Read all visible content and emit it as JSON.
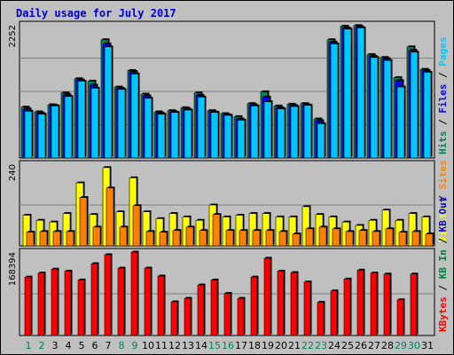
{
  "title": "Daily usage for July 2017",
  "colors": {
    "hits": "#00805c",
    "files": "#0000ff",
    "pages": "#00c8ff",
    "visits": "#ffff00",
    "sites": "#ff8000",
    "kb_in": "#008040",
    "kb_out": "#0000ff",
    "kb_f": "#ff0000",
    "weekend_day": "#00805c",
    "weekday_day": "#000000"
  },
  "chart_data": [
    {
      "type": "bar",
      "panel": "top",
      "ytick": "2252",
      "ymax": 2252,
      "legend": [
        {
          "text": "Hits",
          "color": "#00805c"
        },
        {
          "text": " / ",
          "color": "#000000"
        },
        {
          "text": "Files",
          "color": "#0000ff"
        },
        {
          "text": " / ",
          "color": "#000000"
        },
        {
          "text": "Pages",
          "color": "#00c8ff"
        }
      ],
      "categories": [
        "1",
        "2",
        "3",
        "4",
        "5",
        "6",
        "7",
        "8",
        "9",
        "10",
        "11",
        "12",
        "13",
        "14",
        "15",
        "16",
        "17",
        "18",
        "19",
        "20",
        "21",
        "22",
        "23",
        "24",
        "25",
        "26",
        "27",
        "28",
        "29",
        "30",
        "31"
      ],
      "series": [
        {
          "name": "Hits",
          "values": [
            860,
            780,
            900,
            1100,
            1340,
            1300,
            2000,
            1200,
            1480,
            1080,
            780,
            800,
            850,
            1100,
            800,
            750,
            700,
            920,
            1120,
            880,
            910,
            920,
            660,
            2000,
            2230,
            2240,
            1750,
            1700,
            1360,
            1880,
            1500
          ]
        },
        {
          "name": "Files",
          "values": [
            830,
            760,
            890,
            1070,
            1320,
            1230,
            1930,
            1180,
            1460,
            1050,
            760,
            780,
            830,
            1060,
            780,
            730,
            660,
            900,
            1030,
            850,
            890,
            900,
            630,
            1960,
            2200,
            2220,
            1720,
            1680,
            1310,
            1820,
            1480
          ]
        },
        {
          "name": "Pages",
          "values": [
            790,
            740,
            880,
            1040,
            1300,
            1180,
            1880,
            1160,
            1420,
            1010,
            740,
            770,
            810,
            1030,
            770,
            720,
            640,
            880,
            950,
            830,
            870,
            890,
            580,
            1930,
            2180,
            2200,
            1700,
            1650,
            1200,
            1790,
            1450
          ]
        }
      ]
    },
    {
      "type": "bar",
      "panel": "middle",
      "ytick": "240",
      "ymax": 240,
      "legend": [
        {
          "text": "Visits",
          "color": "#ffff00"
        },
        {
          "text": " / ",
          "color": "#000000"
        },
        {
          "text": "Sites",
          "color": "#ff8000"
        }
      ],
      "categories": [
        "1",
        "2",
        "3",
        "4",
        "5",
        "6",
        "7",
        "8",
        "9",
        "10",
        "11",
        "12",
        "13",
        "14",
        "15",
        "16",
        "17",
        "18",
        "19",
        "20",
        "21",
        "22",
        "23",
        "24",
        "25",
        "26",
        "27",
        "28",
        "29",
        "30",
        "31"
      ],
      "series": [
        {
          "name": "Visits",
          "values": [
            90,
            75,
            70,
            95,
            185,
            92,
            230,
            100,
            200,
            100,
            80,
            95,
            85,
            75,
            120,
            85,
            90,
            95,
            95,
            85,
            85,
            115,
            92,
            85,
            70,
            60,
            75,
            105,
            75,
            95,
            85
          ]
        },
        {
          "name": "Sites",
          "values": [
            40,
            42,
            42,
            42,
            142,
            55,
            170,
            55,
            118,
            42,
            40,
            45,
            55,
            45,
            92,
            45,
            45,
            45,
            45,
            42,
            35,
            50,
            55,
            50,
            42,
            45,
            42,
            50,
            40,
            42,
            35
          ]
        }
      ]
    },
    {
      "type": "bar",
      "panel": "bottom",
      "ytick": "168394",
      "ymax": 168394,
      "legend": [
        {
          "text": "KBytes",
          "color": "#ff0000"
        },
        {
          "text": " / ",
          "color": "#000000"
        },
        {
          "text": "KB In",
          "color": "#008040"
        },
        {
          "text": " / ",
          "color": "#000000"
        },
        {
          "text": "KB Out",
          "color": "#0000ff"
        }
      ],
      "categories": [
        "1",
        "2",
        "3",
        "4",
        "5",
        "6",
        "7",
        "8",
        "9",
        "10",
        "11",
        "12",
        "13",
        "14",
        "15",
        "16",
        "17",
        "18",
        "19",
        "20",
        "21",
        "22",
        "23",
        "24",
        "25",
        "26",
        "27",
        "28",
        "29",
        "30",
        "31"
      ],
      "series": [
        {
          "name": "KBytes",
          "values": [
            118000,
            126000,
            134000,
            130000,
            112000,
            145000,
            163000,
            136000,
            168394,
            136000,
            120000,
            68000,
            75000,
            102000,
            112000,
            85000,
            75000,
            118000,
            156000,
            130000,
            127000,
            108000,
            67000,
            90000,
            114000,
            132000,
            126000,
            124000,
            72000,
            124000,
            0
          ]
        }
      ]
    }
  ],
  "days": [
    "1",
    "2",
    "3",
    "4",
    "5",
    "6",
    "7",
    "8",
    "9",
    "10",
    "11",
    "12",
    "13",
    "14",
    "15",
    "16",
    "17",
    "18",
    "19",
    "20",
    "21",
    "22",
    "23",
    "24",
    "25",
    "26",
    "27",
    "28",
    "29",
    "30",
    "31"
  ],
  "weekend_days": [
    1,
    2,
    8,
    9,
    15,
    16,
    22,
    23,
    29,
    30
  ]
}
